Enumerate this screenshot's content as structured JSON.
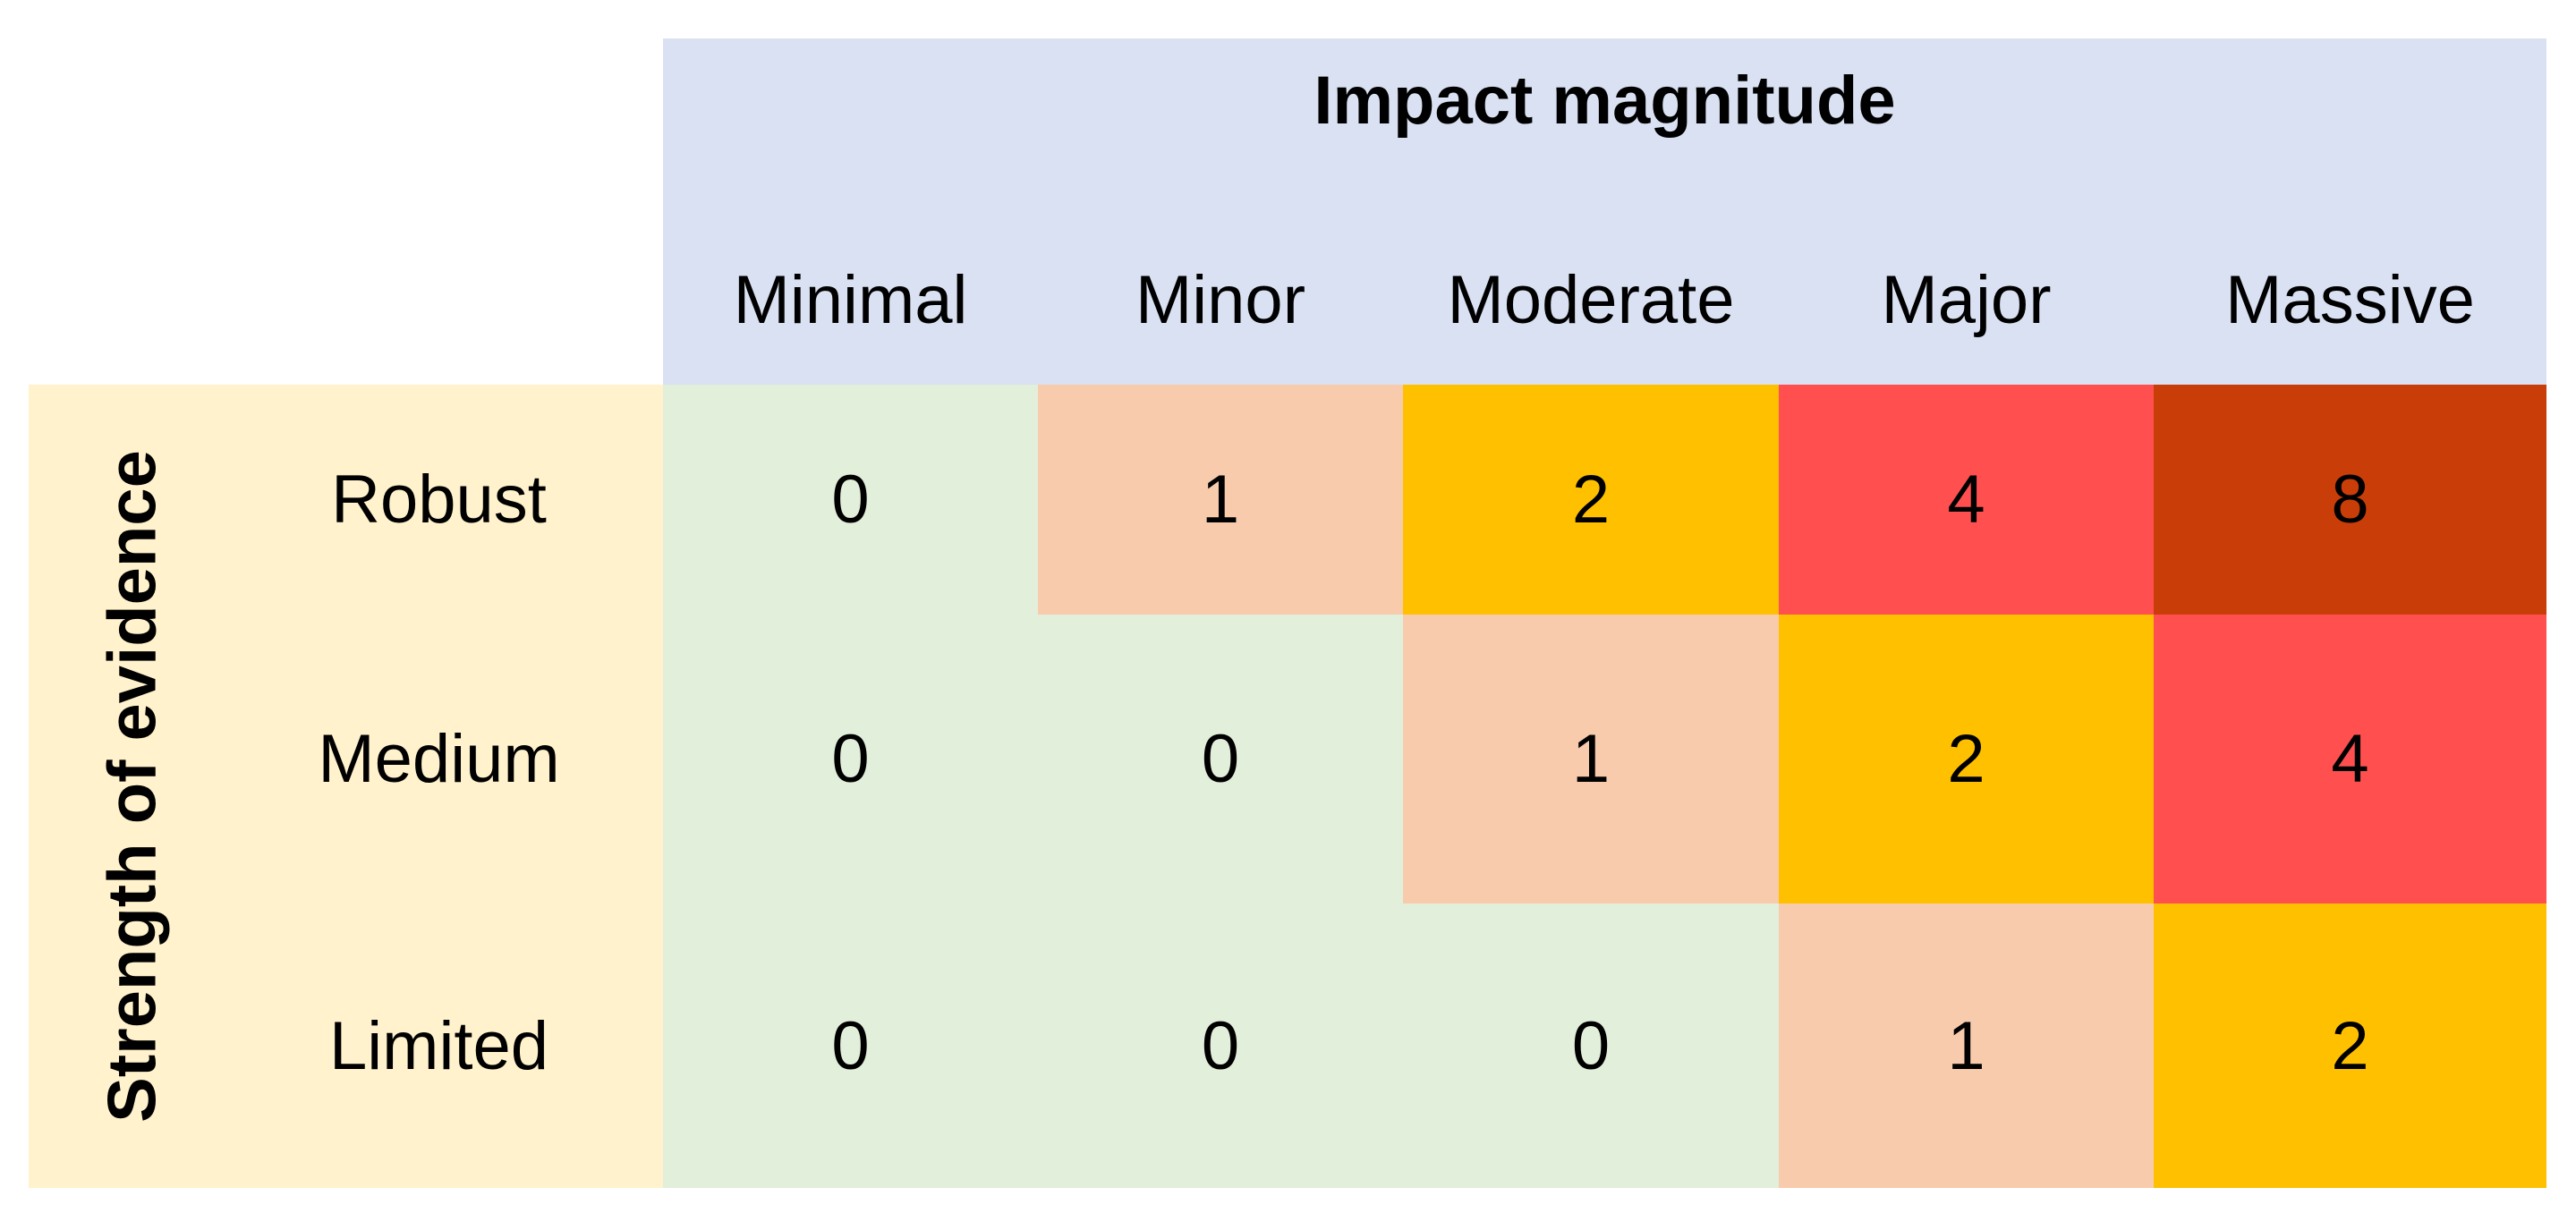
{
  "chart_data": {
    "type": "heatmap",
    "title": "Impact magnitude",
    "row_axis_label": "Strength of evidence",
    "columns": [
      "Minimal",
      "Minor",
      "Moderate",
      "Major",
      "Massive"
    ],
    "rows": [
      "Robust",
      "Medium",
      "Limited"
    ],
    "values": [
      [
        0,
        1,
        2,
        4,
        8
      ],
      [
        0,
        0,
        1,
        2,
        4
      ],
      [
        0,
        0,
        0,
        1,
        2
      ]
    ],
    "cell_colors": {
      "0": "#E2EFDA",
      "1": "#F8CBAD",
      "2": "#FFC000",
      "4": "#FF4F4F",
      "8": "#C93D08"
    },
    "palette": {
      "column_header_bg": "#D9E1F2",
      "row_header_bg": "#FFF2CC",
      "text": "#000000",
      "background": "#FFFFFF"
    },
    "legend_position": "none",
    "grid_lines": "off"
  }
}
